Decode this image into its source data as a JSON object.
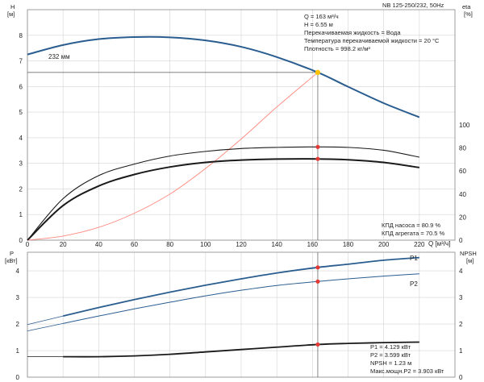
{
  "chart_data": {
    "type": "line",
    "header": "NB 125-250/232, 50Hz",
    "upper": {
      "left_axis": {
        "label": "H",
        "unit": "[м]",
        "ticks": [
          0,
          1,
          2,
          3,
          4,
          5,
          6,
          7,
          8
        ],
        "ylim": [
          0,
          9
        ]
      },
      "right_axis": {
        "label": "eta",
        "unit": "[%]",
        "ticks": [
          0,
          20,
          40,
          60,
          80,
          100
        ],
        "ylim": [
          0,
          200
        ]
      },
      "x_axis": {
        "label": "Q [м³/ч]",
        "ticks": [
          0,
          20,
          40,
          60,
          80,
          100,
          120,
          140,
          160,
          180,
          200,
          220
        ],
        "xlim": [
          0,
          240
        ]
      },
      "impeller_label": "232 мм",
      "head_curve": {
        "x": [
          0,
          20,
          40,
          60,
          80,
          100,
          120,
          140,
          163,
          180,
          200,
          220
        ],
        "y": [
          7.25,
          7.62,
          7.85,
          7.93,
          7.92,
          7.8,
          7.55,
          7.15,
          6.55,
          5.99,
          5.35,
          4.8
        ]
      },
      "system_curve": {
        "x": [
          0,
          20,
          40,
          60,
          80,
          100,
          120,
          140,
          163
        ],
        "y": [
          0,
          0.16,
          0.5,
          1.05,
          1.8,
          2.8,
          3.95,
          5.2,
          6.55
        ]
      },
      "eta_pump_curve": {
        "x": [
          0,
          20,
          40,
          60,
          80,
          100,
          120,
          140,
          163,
          180,
          200,
          220
        ],
        "y": [
          0,
          36,
          56,
          66,
          73,
          77,
          79.5,
          80.5,
          80.9,
          80.5,
          78,
          72
        ]
      },
      "eta_unit_curve": {
        "x": [
          0,
          20,
          40,
          60,
          80,
          100,
          120,
          140,
          163,
          180,
          200,
          220
        ],
        "y": [
          0,
          30,
          47,
          57,
          63.5,
          67.5,
          69.5,
          70.4,
          70.5,
          69.8,
          67.5,
          63
        ]
      },
      "duty_point": {
        "q": 163,
        "h": 6.55,
        "eta_pump": 80.9,
        "eta_unit": 70.5
      },
      "info_lines": [
        "Q = 163 м³/ч",
        "H = 6.55 м",
        "Перекачиваемая жидкость = Вода",
        "Температура перекачиваемой жидкости = 20 °C",
        "Плотность = 998.2 кг/м³"
      ],
      "eta_lines": [
        "КПД насоса = 80.9 %",
        "КПД агрегата = 70.5 %"
      ]
    },
    "lower": {
      "left_axis": {
        "label": "P",
        "unit": "[кВт]",
        "ticks": [
          0,
          1,
          2,
          3,
          4
        ],
        "ylim": [
          0,
          4.7
        ]
      },
      "right_axis": {
        "label": "NPSH",
        "unit": "[м]",
        "ticks": [
          0,
          1,
          2,
          3,
          4
        ],
        "ylim": [
          0,
          4.7
        ]
      },
      "p1_curve": {
        "name": "P1",
        "x": [
          20,
          40,
          60,
          80,
          100,
          120,
          140,
          163,
          180,
          200,
          220
        ],
        "y": [
          2.3,
          2.62,
          2.92,
          3.2,
          3.46,
          3.7,
          3.92,
          4.129,
          4.25,
          4.4,
          4.5
        ]
      },
      "p2_curve": {
        "name": "P2",
        "x": [
          20,
          40,
          60,
          80,
          100,
          120,
          140,
          163,
          180,
          200,
          220
        ],
        "y": [
          2.02,
          2.3,
          2.57,
          2.82,
          3.06,
          3.27,
          3.45,
          3.599,
          3.7,
          3.8,
          3.89
        ]
      },
      "npsh_curve": {
        "x": [
          20,
          40,
          60,
          80,
          100,
          120,
          140,
          163,
          180,
          200,
          220
        ],
        "y": [
          0.77,
          0.77,
          0.8,
          0.86,
          0.95,
          1.04,
          1.13,
          1.23,
          1.27,
          1.3,
          1.32
        ]
      },
      "duty_point": {
        "q": 163,
        "p1": 4.129,
        "p2": 3.599,
        "npsh": 1.23
      },
      "info_lines": [
        "P1 = 4.129 кВт",
        "P2 = 3.599 кВт",
        "NPSH = 1.23 м",
        "Макс.мощн.P2 = 3.903 кВт"
      ]
    },
    "colors": {
      "head": "#2a5d8f",
      "system": "#ff8a80",
      "eta": "#1a1a1a",
      "power": "#2a5d8f",
      "npsh": "#1a1a1a",
      "marker_red": "#e53935",
      "marker_orange": "#ffc107",
      "grid": "#d4d4d4"
    }
  }
}
